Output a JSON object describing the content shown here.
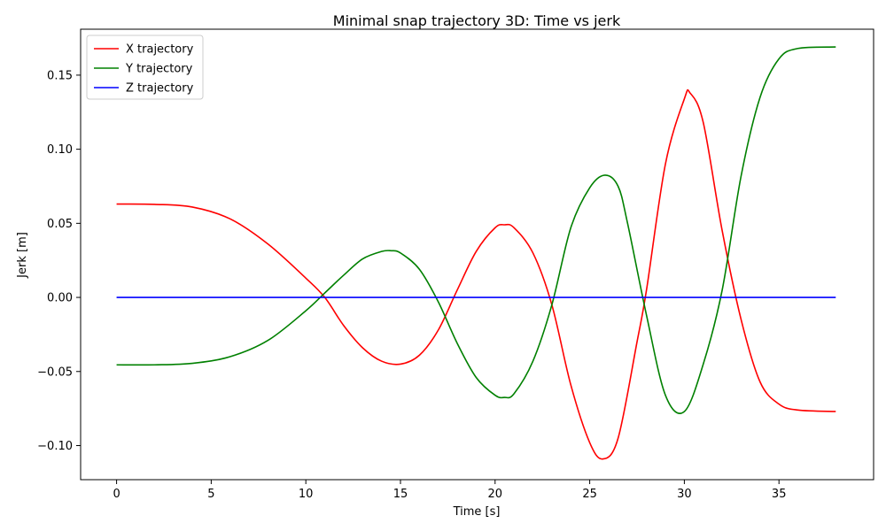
{
  "chart_data": {
    "type": "line",
    "title": "Minimal snap trajectory 3D: Time vs jerk",
    "xlabel": "Time [s]",
    "ylabel": "Jerk [m]",
    "xlim": [
      -1.9,
      40
    ],
    "ylim": [
      -0.123,
      0.181
    ],
    "xticks": [
      0,
      5,
      10,
      15,
      20,
      25,
      30,
      35
    ],
    "xtick_labels": [
      "0",
      "5",
      "10",
      "15",
      "20",
      "25",
      "30",
      "35"
    ],
    "yticks": [
      -0.1,
      -0.05,
      0.0,
      0.05,
      0.1,
      0.15
    ],
    "ytick_labels": [
      "−0.10",
      "−0.05",
      "0.00",
      "0.05",
      "0.10",
      "0.15"
    ],
    "grid": false,
    "legend_position": "top-left",
    "series": [
      {
        "name": "X trajectory",
        "color": "#ff0000",
        "points": [
          [
            0,
            0.063
          ],
          [
            2,
            0.0628
          ],
          [
            4,
            0.061
          ],
          [
            6,
            0.053
          ],
          [
            8,
            0.036
          ],
          [
            10,
            0.013
          ],
          [
            11,
            0.0
          ],
          [
            12,
            -0.019
          ],
          [
            13,
            -0.034
          ],
          [
            14,
            -0.043
          ],
          [
            15,
            -0.045
          ],
          [
            16,
            -0.039
          ],
          [
            17,
            -0.022
          ],
          [
            18,
            0.005
          ],
          [
            19,
            0.031
          ],
          [
            20,
            0.047
          ],
          [
            20.5,
            0.049
          ],
          [
            21,
            0.047
          ],
          [
            22,
            0.03
          ],
          [
            23,
            -0.005
          ],
          [
            24,
            -0.059
          ],
          [
            25,
            -0.098
          ],
          [
            25.7,
            -0.109
          ],
          [
            26.5,
            -0.095
          ],
          [
            27.5,
            -0.03
          ],
          [
            28,
            0.005
          ],
          [
            29,
            0.09
          ],
          [
            30,
            0.134
          ],
          [
            30.3,
            0.138
          ],
          [
            31,
            0.118
          ],
          [
            32,
            0.045
          ],
          [
            33,
            -0.015
          ],
          [
            34,
            -0.057
          ],
          [
            35,
            -0.072
          ],
          [
            36,
            -0.076
          ],
          [
            38,
            -0.077
          ]
        ]
      },
      {
        "name": "Y trajectory",
        "color": "#008000",
        "points": [
          [
            0,
            -0.0455
          ],
          [
            2,
            -0.0455
          ],
          [
            4,
            -0.0445
          ],
          [
            6,
            -0.04
          ],
          [
            8,
            -0.029
          ],
          [
            10,
            -0.009
          ],
          [
            11,
            0.003
          ],
          [
            12,
            0.015
          ],
          [
            13,
            0.026
          ],
          [
            14,
            0.031
          ],
          [
            14.5,
            0.0315
          ],
          [
            15,
            0.03
          ],
          [
            16,
            0.019
          ],
          [
            17,
            -0.003
          ],
          [
            18,
            -0.031
          ],
          [
            19,
            -0.054
          ],
          [
            20,
            -0.066
          ],
          [
            20.5,
            -0.0675
          ],
          [
            21,
            -0.065
          ],
          [
            22,
            -0.043
          ],
          [
            23,
            -0.005
          ],
          [
            24,
            0.047
          ],
          [
            25,
            0.074
          ],
          [
            25.8,
            0.0825
          ],
          [
            26.5,
            0.075
          ],
          [
            27,
            0.05
          ],
          [
            28,
            -0.012
          ],
          [
            29,
            -0.066
          ],
          [
            30,
            -0.077
          ],
          [
            31,
            -0.045
          ],
          [
            32,
            0.005
          ],
          [
            33,
            0.082
          ],
          [
            34,
            0.135
          ],
          [
            35,
            0.161
          ],
          [
            36,
            0.168
          ],
          [
            38,
            0.169
          ]
        ]
      },
      {
        "name": "Z trajectory",
        "color": "#0000ff",
        "points": [
          [
            0,
            0.0
          ],
          [
            38,
            0.0
          ]
        ]
      }
    ]
  }
}
